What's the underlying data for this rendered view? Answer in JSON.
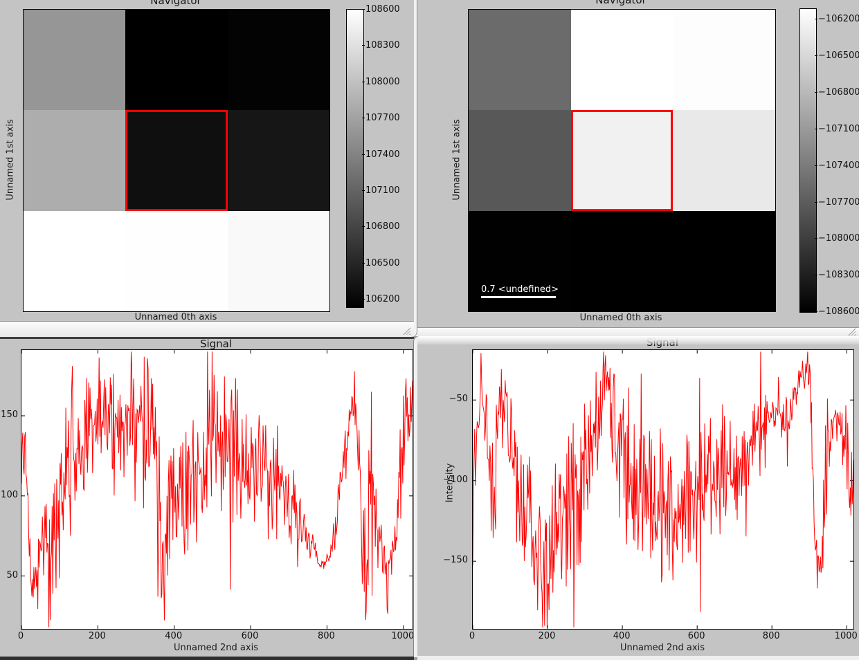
{
  "screen": {
    "background": "#9c9c9c"
  },
  "windows": {
    "navigator_left": {
      "title": "Navigator",
      "xlabel": "Unnamed 0th axis",
      "ylabel": "Unnamed 1st axis",
      "chart_data": {
        "type": "heatmap",
        "rows": 3,
        "cols": 3,
        "cell_colors": [
          [
            "#969696",
            "#000000",
            "#030303"
          ],
          [
            "#adadad",
            "#0f0f0f",
            "#161616"
          ],
          [
            "#ffffff",
            "#fefefe",
            "#f9f9f9"
          ]
        ],
        "selection": {
          "row": 1,
          "col": 1,
          "border_color": "#ff0000"
        },
        "colorbar": {
          "gradient_top": "#ffffff",
          "gradient_bottom": "#000000",
          "ticks": [
            "108600",
            "108300",
            "108000",
            "107700",
            "107400",
            "107100",
            "106800",
            "106500",
            "106200"
          ]
        }
      }
    },
    "navigator_right": {
      "title": "Navigator",
      "xlabel": "Unnamed 0th axis",
      "ylabel": "Unnamed 1st axis",
      "scalebar_label": "0.7 <undefined>",
      "chart_data": {
        "type": "heatmap",
        "rows": 3,
        "cols": 3,
        "cell_colors": [
          [
            "#6b6b6b",
            "#ffffff",
            "#fdfdfd"
          ],
          [
            "#585858",
            "#f1f1f1",
            "#e9e9e9"
          ],
          [
            "#010101",
            "#000000",
            "#000000"
          ]
        ],
        "selection": {
          "row": 1,
          "col": 1,
          "border_color": "#ff0000"
        },
        "colorbar": {
          "gradient_top": "#ffffff",
          "gradient_bottom": "#000000",
          "ticks": [
            "−106200",
            "−106500",
            "−106800",
            "−107100",
            "−107400",
            "−107700",
            "−108000",
            "−108300",
            "−108600"
          ]
        }
      }
    },
    "signal_left": {
      "title": "Signal",
      "xlabel": "Unnamed 2nd axis",
      "chart_data": {
        "type": "line",
        "line_color": "#ff0000",
        "xlim": [
          0,
          1024
        ],
        "ylim": [
          17,
          191
        ],
        "x_tick_values": [
          0,
          200,
          400,
          600,
          800,
          1000
        ],
        "x_tick_labels": [
          "0",
          "200",
          "400",
          "600",
          "800",
          "1000"
        ],
        "y_tick_values": [
          150,
          100,
          50
        ],
        "y_tick_labels": [
          "150",
          "100",
          "50"
        ],
        "n_points": 600,
        "seed": 90125,
        "spike_chance": 0.06,
        "envelope": [
          [
            0,
            100,
            55
          ],
          [
            10,
            140,
            30
          ],
          [
            25,
            42,
            12
          ],
          [
            45,
            50,
            25
          ],
          [
            70,
            80,
            45
          ],
          [
            95,
            70,
            50
          ],
          [
            115,
            120,
            55
          ],
          [
            140,
            120,
            60
          ],
          [
            165,
            145,
            45
          ],
          [
            190,
            140,
            50
          ],
          [
            215,
            155,
            40
          ],
          [
            240,
            130,
            50
          ],
          [
            265,
            140,
            45
          ],
          [
            290,
            140,
            50
          ],
          [
            315,
            135,
            50
          ],
          [
            340,
            140,
            45
          ],
          [
            358,
            120,
            60
          ],
          [
            368,
            45,
            30
          ],
          [
            385,
            105,
            50
          ],
          [
            410,
            110,
            45
          ],
          [
            440,
            100,
            40
          ],
          [
            470,
            115,
            45
          ],
          [
            495,
            130,
            50
          ],
          [
            520,
            140,
            50
          ],
          [
            545,
            125,
            50
          ],
          [
            575,
            125,
            45
          ],
          [
            605,
            120,
            45
          ],
          [
            640,
            115,
            40
          ],
          [
            680,
            105,
            35
          ],
          [
            715,
            90,
            25
          ],
          [
            745,
            75,
            15
          ],
          [
            775,
            60,
            7
          ],
          [
            795,
            57,
            5
          ],
          [
            820,
            75,
            15
          ],
          [
            845,
            120,
            25
          ],
          [
            865,
            158,
            10
          ],
          [
            880,
            140,
            30
          ],
          [
            895,
            60,
            55
          ],
          [
            905,
            45,
            60
          ],
          [
            915,
            110,
            65
          ],
          [
            930,
            80,
            30
          ],
          [
            950,
            62,
            18
          ],
          [
            970,
            60,
            15
          ],
          [
            985,
            90,
            35
          ],
          [
            1000,
            140,
            30
          ],
          [
            1012,
            155,
            25
          ],
          [
            1024,
            140,
            35
          ]
        ]
      }
    },
    "signal_right": {
      "title": "Signal",
      "xlabel": "Unnamed 2nd axis",
      "ylabel": "Intensity",
      "chart_data": {
        "type": "line",
        "line_color": "#ff0000",
        "xlim": [
          0,
          1018
        ],
        "ylim": [
          -192,
          -19
        ],
        "x_tick_values": [
          0,
          200,
          400,
          600,
          800,
          1000
        ],
        "x_tick_labels": [
          "0",
          "200",
          "400",
          "600",
          "800",
          "1000"
        ],
        "y_tick_values": [
          -50,
          -100,
          -150
        ],
        "y_tick_labels": [
          "−50",
          "−100",
          "−150"
        ],
        "n_points": 600,
        "seed": 77031,
        "spike_chance": 0.06,
        "envelope": [
          [
            0,
            -120,
            45
          ],
          [
            12,
            -60,
            25
          ],
          [
            22,
            -42,
            10
          ],
          [
            35,
            -70,
            30
          ],
          [
            55,
            -110,
            45
          ],
          [
            75,
            -60,
            40
          ],
          [
            90,
            -45,
            25
          ],
          [
            105,
            -90,
            45
          ],
          [
            125,
            -110,
            50
          ],
          [
            150,
            -120,
            55
          ],
          [
            175,
            -150,
            40
          ],
          [
            200,
            -160,
            35
          ],
          [
            220,
            -120,
            50
          ],
          [
            245,
            -110,
            50
          ],
          [
            270,
            -120,
            55
          ],
          [
            295,
            -90,
            45
          ],
          [
            320,
            -80,
            40
          ],
          [
            345,
            -55,
            35
          ],
          [
            358,
            -35,
            18
          ],
          [
            372,
            -75,
            45
          ],
          [
            395,
            -80,
            45
          ],
          [
            420,
            -95,
            50
          ],
          [
            450,
            -100,
            50
          ],
          [
            480,
            -110,
            50
          ],
          [
            510,
            -120,
            50
          ],
          [
            540,
            -130,
            45
          ],
          [
            570,
            -120,
            45
          ],
          [
            600,
            -115,
            45
          ],
          [
            630,
            -105,
            40
          ],
          [
            665,
            -100,
            40
          ],
          [
            700,
            -95,
            40
          ],
          [
            730,
            -85,
            35
          ],
          [
            760,
            -75,
            30
          ],
          [
            785,
            -60,
            18
          ],
          [
            805,
            -55,
            12
          ],
          [
            825,
            -65,
            20
          ],
          [
            845,
            -60,
            15
          ],
          [
            862,
            -48,
            8
          ],
          [
            878,
            -35,
            12
          ],
          [
            895,
            -28,
            10
          ],
          [
            905,
            -60,
            30
          ],
          [
            915,
            -145,
            25
          ],
          [
            928,
            -155,
            18
          ],
          [
            945,
            -95,
            45
          ],
          [
            962,
            -65,
            12
          ],
          [
            980,
            -68,
            15
          ],
          [
            1000,
            -85,
            25
          ],
          [
            1018,
            -120,
            35
          ]
        ]
      }
    }
  }
}
